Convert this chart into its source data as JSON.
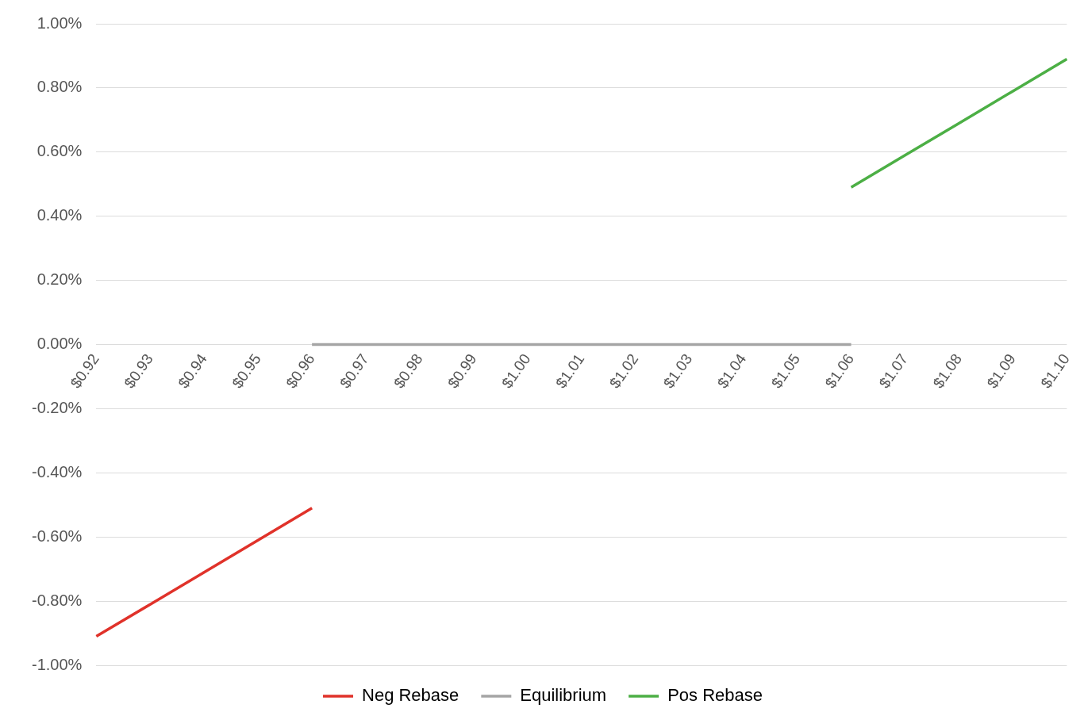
{
  "chart_data": {
    "type": "line",
    "categories": [
      "$0.92",
      "$0.93",
      "$0.94",
      "$0.95",
      "$0.96",
      "$0.97",
      "$0.98",
      "$0.99",
      "$1.00",
      "$1.01",
      "$1.02",
      "$1.03",
      "$1.04",
      "$1.05",
      "$1.06",
      "$1.07",
      "$1.08",
      "$1.09",
      "$1.10"
    ],
    "series": [
      {
        "name": "Neg Rebase",
        "color": "#e0322a",
        "values": [
          -0.91,
          -0.81,
          -0.71,
          -0.61,
          -0.51,
          null,
          null,
          null,
          null,
          null,
          null,
          null,
          null,
          null,
          null,
          null,
          null,
          null,
          null
        ]
      },
      {
        "name": "Equilibrium",
        "color": "#a5a5a5",
        "values": [
          null,
          null,
          null,
          null,
          0,
          0,
          0,
          0,
          0,
          0,
          0,
          0,
          0,
          0,
          0,
          null,
          null,
          null,
          null
        ]
      },
      {
        "name": "Pos Rebase",
        "color": "#4caf45",
        "values": [
          null,
          null,
          null,
          null,
          null,
          null,
          null,
          null,
          null,
          null,
          null,
          null,
          null,
          null,
          0.49,
          0.59,
          0.69,
          0.79,
          0.89
        ]
      }
    ],
    "ylim": [
      -1,
      1
    ],
    "yticks": [
      {
        "value": -1,
        "label": "-1.00%"
      },
      {
        "value": -0.8,
        "label": "-0.80%"
      },
      {
        "value": -0.6,
        "label": "-0.60%"
      },
      {
        "value": -0.4,
        "label": "-0.40%"
      },
      {
        "value": -0.2,
        "label": "-0.20%"
      },
      {
        "value": 0,
        "label": "0.00%"
      },
      {
        "value": 0.2,
        "label": "0.20%"
      },
      {
        "value": 0.4,
        "label": "0.40%"
      },
      {
        "value": 0.6,
        "label": "0.60%"
      },
      {
        "value": 0.8,
        "label": "0.80%"
      },
      {
        "value": 1,
        "label": "1.00%"
      }
    ],
    "grid": "y",
    "legend": "bottom",
    "marker": "none",
    "line_style": "solid"
  }
}
